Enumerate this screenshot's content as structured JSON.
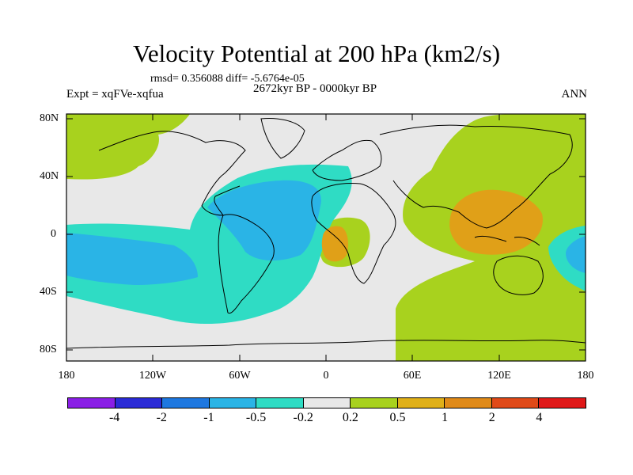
{
  "title": "Velocity Potential at 200 hPa (km2/s)",
  "stats": "rmsd= 0.356088 diff= -5.6764e-05",
  "period": "2672kyr BP - 0000kyr BP",
  "experiment": "Expt = xqFVe-xqfua",
  "season": "ANN",
  "lat_ticks": [
    "80N",
    "40N",
    "0",
    "40S",
    "80S"
  ],
  "lon_ticks": [
    "180",
    "120W",
    "60W",
    "0",
    "60E",
    "120E",
    "180"
  ],
  "colorbar": {
    "labels": [
      "-4",
      "-2",
      "-1",
      "-0.5",
      "-0.2",
      "0.2",
      "0.5",
      "1",
      "2",
      "4"
    ],
    "colors": [
      "#8a1fe6",
      "#2b2bd6",
      "#1e78e0",
      "#2ab4e6",
      "#2fdcc4",
      "#e8e8e8",
      "#a8d21e",
      "#e0b018",
      "#e08a18",
      "#e04a18",
      "#e01818"
    ]
  },
  "field_colors": {
    "cyan_light": "#2fdcc4",
    "blue": "#2ab4e6",
    "green": "#a8d21e",
    "orange": "#e0a018",
    "neutral": "#e8e8e8"
  }
}
